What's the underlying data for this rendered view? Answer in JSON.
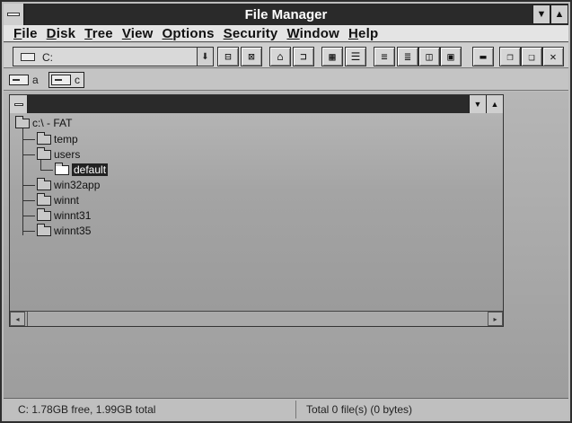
{
  "window": {
    "title": "File Manager"
  },
  "menu": [
    {
      "key": "F",
      "rest": "ile"
    },
    {
      "key": "D",
      "rest": "isk"
    },
    {
      "key": "T",
      "rest": "ree"
    },
    {
      "key": "V",
      "rest": "iew"
    },
    {
      "key": "O",
      "rest": "ptions"
    },
    {
      "key": "S",
      "rest": "ecurity"
    },
    {
      "key": "W",
      "rest": "indow"
    },
    {
      "key": "H",
      "rest": "elp"
    }
  ],
  "toolbar": {
    "drive_value": "C:"
  },
  "drives": [
    {
      "label": "a"
    },
    {
      "label": "c"
    }
  ],
  "tree": {
    "root": "c:\\ - FAT",
    "nodes": [
      "temp",
      "users",
      "default",
      "win32app",
      "winnt",
      "winnt31",
      "winnt35"
    ]
  },
  "status": {
    "left": "C: 1.78GB free,  1.99GB total",
    "right": "Total 0 file(s) (0 bytes)"
  }
}
